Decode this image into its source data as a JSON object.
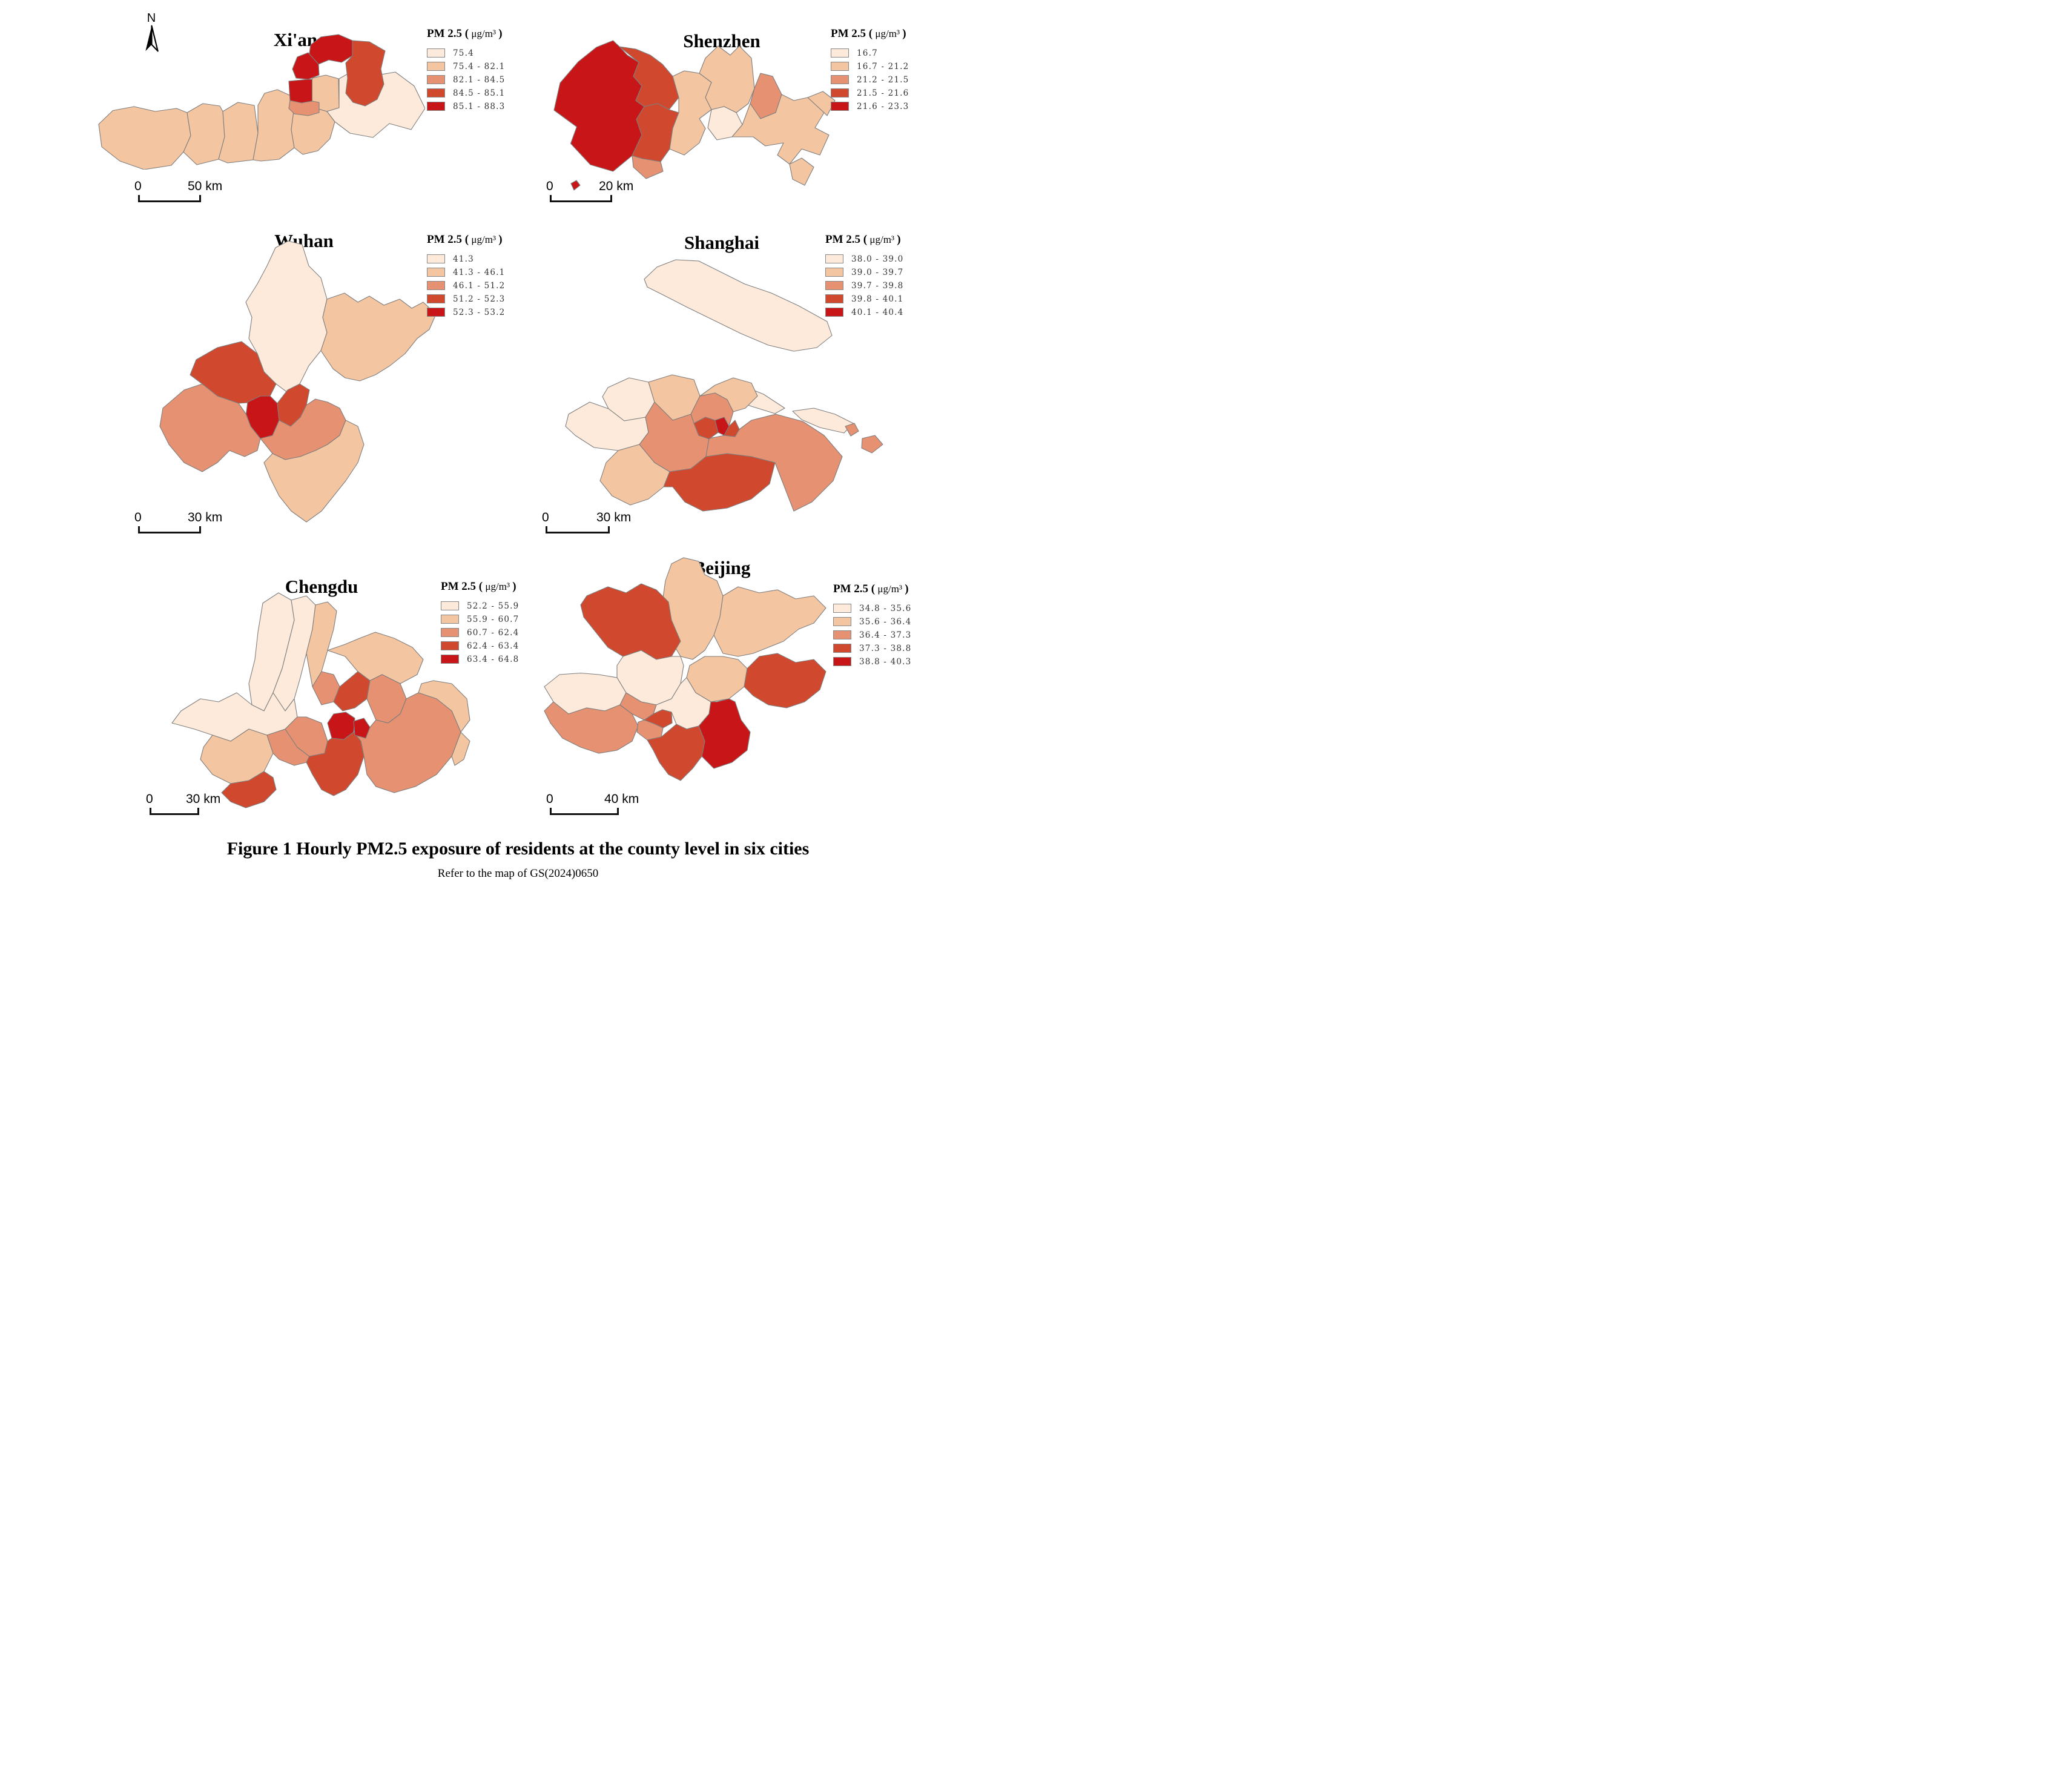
{
  "figure": {
    "north_label": "N",
    "caption": "Figure 1 Hourly PM2.5 exposure of residents at the county level in six cities",
    "subcaption": "Refer to the map of GS(2024)0650"
  },
  "legend": {
    "prefix": "PM 2.5 (",
    "unit": " μg/m³ ",
    "suffix": ")"
  },
  "palette": {
    "c1": "#fdeada",
    "c2": "#f4c5a1",
    "c3": "#e69171",
    "c4": "#d0492f",
    "c5": "#c81618",
    "border": "#7e7e7e"
  },
  "cities": [
    {
      "id": "xian",
      "title": "Xi'an",
      "legend": [
        "75.4",
        "75.4 - 82.1",
        "82.1 - 84.5",
        "84.5 - 85.1",
        "85.1 - 88.3"
      ],
      "scale": {
        "zero": "0",
        "distance": "50 km"
      },
      "regions": [
        {
          "c": 2,
          "p": "8,300 55,255 125,242 195,258 265,248 300,262 312,338 288,392 248,436 158,450 78,422 18,375"
        },
        {
          "c": 2,
          "p": "300,262 352,232 408,240 418,258 424,342 404,416 332,434 288,392 312,338"
        },
        {
          "c": 2,
          "p": "418,258 468,228 522,238 534,330 518,418 434,428 404,416 424,342"
        },
        {
          "c": 2,
          "p": "534,238 556,198 598,186 642,206 652,258 644,318 654,378 604,416 544,422 518,418 534,330"
        },
        {
          "c": 2,
          "p": "652,258 713,244 762,258 788,292 772,348 732,388 682,400 654,378 644,318"
        },
        {
          "c": 2,
          "p": "713,148 758,138 800,150 802,246 762,258 713,244"
        },
        {
          "c": 1,
          "p": "802,150 848,124 918,140 988,128 1050,174 1086,248 1040,318 968,298 914,344 838,330 788,292 762,258 802,246"
        },
        {
          "c": 5,
          "p": "700,94 708,38 742,12 800,4 846,24 846,74 810,96 768,88 734,102"
        },
        {
          "c": 4,
          "p": "846,24 902,28 954,58 940,118 950,168 928,218 888,240 848,228 824,198 830,148 824,98 846,74"
        },
        {
          "c": 5,
          "p": "648,118 664,78 700,64 734,102 736,138 700,152 660,148"
        },
        {
          "c": 5,
          "p": "636,158 700,152 713,152 713,224 678,230 640,222"
        },
        {
          "c": 3,
          "p": "640,222 678,230 713,224 736,228 736,262 700,272 654,266 636,248"
        }
      ]
    },
    {
      "id": "shenzhen",
      "title": "Shenzhen",
      "legend": [
        "16.7",
        "16.7 - 21.2",
        "21.2 - 21.5",
        "21.5 - 21.6",
        "21.6 - 23.3"
      ],
      "scale": {
        "zero": "0",
        "distance": "20 km"
      },
      "regions": [
        {
          "c": 5,
          "p": "235,40 180,62 120,110 60,180 40,270 115,325 95,380 160,450 235,472 298,420 330,352 312,300 338,258 310,238 330,190 302,158 320,112 282,88 256,60"
        },
        {
          "c": 4,
          "p": "256,60 320,112 302,158 330,190 310,238 338,258 382,248 420,268 452,228 432,158 398,118 358,88 310,68"
        },
        {
          "c": 4,
          "p": "338,258 312,300 330,352 298,420 332,430 392,440 422,398 432,330 452,278 420,268 382,248"
        },
        {
          "c": 3,
          "p": "298,420 332,430 392,440 400,472 344,496 302,458"
        },
        {
          "c": 2,
          "p": "432,158 470,140 520,148 560,178 540,228 560,268 520,298 540,330 520,378 470,418 422,398 432,330 452,278 452,228"
        },
        {
          "c": 2,
          "p": "520,148 540,98 582,58 622,88 652,58 692,98 702,198 682,248 642,278 602,258 560,268 540,228 560,178"
        },
        {
          "c": 3,
          "p": "702,198 722,148 762,158 792,218 772,278 722,298 688,248"
        },
        {
          "c": 1,
          "p": "560,268 602,258 642,278 662,318 628,358 578,368 548,328"
        },
        {
          "c": 2,
          "p": "662,318 688,248 722,298 772,278 792,218 832,238 878,228 932,278 902,328 948,352 918,418 858,398 818,448 778,418 798,378 738,388 698,358 628,358"
        },
        {
          "c": 2,
          "p": "818,448 858,428 898,458 868,518 828,498"
        },
        {
          "c": 2,
          "p": "878,228 928,208 968,238 942,288 932,278"
        },
        {
          "c": 5,
          "p": "96,512 114,502 126,518 106,534"
        }
      ]
    },
    {
      "id": "wuhan",
      "title": "Wuhan",
      "legend": [
        "41.3",
        "41.3 - 46.1",
        "46.1 - 51.2",
        "51.2 - 52.3",
        "52.3 - 53.2"
      ],
      "scale": {
        "zero": "0",
        "distance": "30 km"
      },
      "regions": [
        {
          "c": 1,
          "p": "390,28 432,6 478,18 500,88 540,128 560,198 546,258 560,308 540,368 500,418 470,478 432,508 392,478 352,438 330,378 302,328 312,258 292,208 330,148 362,88"
        },
        {
          "c": 2,
          "p": "560,198 618,178 662,208 700,188 748,218 800,198 840,228 878,208 920,248 898,298 858,328 818,378 768,418 720,448 668,468 620,458 580,428 540,368 560,308 546,258"
        },
        {
          "c": 4,
          "p": "128,398 198,358 278,338 330,378 352,438 392,478 372,518 330,538 268,542 198,518 148,478 108,448"
        },
        {
          "c": 3,
          "p": "18,558 88,498 148,478 198,518 268,542 293,578 308,618 340,658 330,698 288,718 238,698 198,738 148,768 88,738 38,678 8,618"
        },
        {
          "c": 3,
          "p": "340,658 380,648 402,598 440,618 472,588 492,548 522,528 562,538 602,558 622,598 602,648 562,678 522,698 472,718 422,728 380,708"
        },
        {
          "c": 2,
          "p": "380,708 422,728 472,718 522,698 562,678 602,648 622,598 662,618 682,678 662,738 622,798 582,848 542,898 492,934 442,898 402,848 372,788 352,738"
        },
        {
          "c": 5,
          "p": "298,538 340,518 372,518 396,542 402,598 380,648 340,658 308,618 293,578"
        },
        {
          "c": 4,
          "p": "396,542 430,498 470,478 502,498 492,548 472,588 440,618 402,598"
        }
      ]
    },
    {
      "id": "shanghai",
      "title": "Shanghai",
      "legend": [
        "38.0 - 39.0",
        "39.0 - 39.7",
        "39.7 - 39.8",
        "39.8 - 40.1",
        "40.1 - 40.4"
      ],
      "scale": {
        "zero": "0",
        "distance": "30 km"
      },
      "regions": [
        {
          "c": 1,
          "p": "268,112 310,72 372,48 448,52 520,88 600,128 688,158 778,200 872,252 888,298 838,338 762,350 678,330 588,292 498,248 408,204 330,164 278,138"
        },
        {
          "c": 1,
          "p": "520,478 588,462 662,492 732,538 700,556 622,532 552,506"
        },
        {
          "c": 1,
          "p": "758,548 828,538 898,558 958,588 928,620 848,602 788,576"
        },
        {
          "c": 1,
          "p": "148,470 218,438 282,452 302,518 272,568 202,580 150,540 130,500"
        },
        {
          "c": 2,
          "p": "282,452 360,428 432,444 452,498 422,558 362,578 302,518"
        },
        {
          "c": 2,
          "p": "452,498 502,462 562,438 622,455 642,498 602,538 562,550 542,510 502,488"
        },
        {
          "c": 1,
          "p": "18,558 88,518 150,540 202,580 272,568 282,618 252,658 182,678 102,668 40,628 8,598"
        },
        {
          "c": 3,
          "p": "422,558 452,498 502,488 542,510 562,550 548,598 502,578 470,568 432,588"
        },
        {
          "c": 3,
          "p": "252,658 282,618 272,568 302,518 362,578 422,558 432,588 448,628 482,638 472,698 422,738 352,748 302,718"
        },
        {
          "c": 2,
          "p": "182,678 252,658 302,718 352,748 332,798 282,838 222,858 162,828 122,778 142,718"
        },
        {
          "c": 4,
          "p": "352,748 422,738 472,698 542,688 622,698 700,718 682,788 622,838 542,868 462,878 402,848 362,798 332,798"
        },
        {
          "c": 3,
          "p": "482,638 532,628 568,632 582,608 622,578 702,558 792,582 862,628 922,698 892,778 822,848 762,878 700,718 622,698 542,688 472,698"
        },
        {
          "c": 4,
          "p": "432,588 470,568 502,578 512,618 482,640 448,628"
        },
        {
          "c": 5,
          "p": "502,578 532,568 548,598 532,628 512,618"
        },
        {
          "c": 4,
          "p": "548,598 568,578 582,608 568,632 532,628"
        },
        {
          "c": 3,
          "p": "932,598 962,588 976,614 950,630"
        },
        {
          "c": 3,
          "p": "988,638 1030,628 1056,658 1020,686 986,670"
        }
      ]
    },
    {
      "id": "chengdu",
      "title": "Chengdu",
      "legend": [
        "52.2 - 55.9",
        "55.9 - 60.7",
        "60.7 - 62.4",
        "62.4 - 63.4",
        "63.4 - 64.8"
      ],
      "scale": {
        "zero": "0",
        "distance": "30 km"
      },
      "regions": [
        {
          "c": 1,
          "p": "328,62 380,28 422,52 432,118 412,198 392,278 362,358 332,418 292,398 282,328 302,248 312,158"
        },
        {
          "c": 1,
          "p": "422,52 472,38 502,68 492,148 472,228 452,308 432,378 402,418 362,358 392,278 412,198 432,118"
        },
        {
          "c": 1,
          "p": "58,418 122,378 182,388 242,358 292,398 332,418 362,358 402,418 432,378 442,438 402,478 342,498 282,478 222,518 162,498 102,478 28,458"
        },
        {
          "c": 2,
          "p": "162,498 222,518 282,478 342,498 362,558 332,618 282,648 222,658 162,628 122,578 132,538"
        },
        {
          "c": 2,
          "p": "502,68 542,58 572,88 562,148 542,218 522,288 492,338 472,228 492,148"
        },
        {
          "c": 2,
          "p": "542,218 600,198 648,178 700,158 762,178 822,208 858,248 838,298 782,328 722,298 682,318 642,288 600,238"
        },
        {
          "c": 4,
          "p": "222,658 282,648 332,618 362,638 372,678 332,718 272,738 222,718 192,688"
        },
        {
          "c": 2,
          "p": "842,358 902,378 952,418 982,488 1012,448 1002,378 952,328 892,318 852,328"
        },
        {
          "c": 2,
          "p": "952,568 982,488 1012,518 992,578 962,598"
        },
        {
          "c": 3,
          "p": "492,338 522,288 562,298 582,338 562,388 522,398"
        },
        {
          "c": 4,
          "p": "562,388 582,338 642,288 682,318 672,378 632,408 592,418"
        },
        {
          "c": 3,
          "p": "682,318 722,298 782,328 802,378 782,428 742,458 702,448 672,378"
        },
        {
          "c": 3,
          "p": "662,568 652,518 632,498 668,508 682,472 702,448 742,458 782,428 802,378 842,358 902,378 952,418 982,488 952,568 902,628 832,668 762,688 702,668 672,628"
        },
        {
          "c": 3,
          "p": "342,498 402,478 422,508 442,538 482,568 472,588 432,598 382,578 362,558"
        },
        {
          "c": 3,
          "p": "402,478 442,438 472,438 522,458 542,518 532,558 482,568 442,538 422,508"
        },
        {
          "c": 4,
          "p": "482,568 532,558 542,518 556,508 596,512 628,488 652,518 662,568 642,628 602,678 562,698 522,678 492,628 472,588"
        },
        {
          "c": 5,
          "p": "542,458 562,428 602,422 632,442 628,488 596,512 556,508"
        },
        {
          "c": 5,
          "p": "628,452 662,442 682,472 668,508 632,498"
        }
      ]
    },
    {
      "id": "beijing",
      "title": "Beijing",
      "legend": [
        "34.8 - 35.6",
        "35.6 - 36.4",
        "36.4 - 37.3",
        "37.3 - 38.8",
        "38.8 - 40.3"
      ],
      "scale": {
        "zero": "0",
        "distance": "40 km"
      },
      "regions": [
        {
          "c": 2,
          "p": "428,22 468,2 518,14 538,58 578,78 598,128 588,198 568,258 538,308 498,338 458,328 428,278 418,208 398,148 408,78"
        },
        {
          "c": 2,
          "p": "598,128 648,98 718,118 778,108 838,138 898,128 938,168 898,218 848,238 798,278 748,298 698,318 648,328 598,318 568,258 588,198"
        },
        {
          "c": 4,
          "p": "148,128 218,98 278,118 328,88 378,108 418,148 428,208 458,278 428,328 378,338 328,308 268,328 218,298 178,248 138,198 128,158"
        },
        {
          "c": 1,
          "p": "268,328 328,308 378,338 428,328 458,328 468,358 458,418 428,468 378,488 328,478 278,448 248,398 248,358"
        },
        {
          "c": 1,
          "p": "8,428 58,388 128,383 188,388 248,398 278,448 258,488 208,508 148,498 88,518 38,478"
        },
        {
          "c": 3,
          "p": "38,478 88,518 148,498 208,508 258,488 298,518 318,558 298,608 248,638 188,648 128,628 68,598 28,548 8,508"
        },
        {
          "c": 2,
          "p": "488,358 538,328 598,328 648,338 678,368 668,428 618,468 558,478 508,448 478,398"
        },
        {
          "c": 1,
          "p": "428,468 458,418 478,398 508,448 558,478 552,518 518,558 478,568 444,552 428,512 398,504 368,518 378,488"
        },
        {
          "c": 4,
          "p": "678,368 718,328 778,318 838,348 898,338 938,378 918,438 868,478 808,498 748,488 698,458 668,428"
        },
        {
          "c": 3,
          "p": "278,448 328,478 378,488 368,518 338,538 298,518 258,488"
        },
        {
          "c": 4,
          "p": "368,518 398,504 428,512 430,548 400,564 370,550 338,538"
        },
        {
          "c": 3,
          "p": "318,545 338,538 370,550 400,564 394,594 348,604 314,578"
        },
        {
          "c": 5,
          "p": "552,518 518,558 538,608 528,658 568,698 628,678 678,638 688,578 658,538 638,478 618,468 578,478 558,478"
        },
        {
          "c": 4,
          "p": "394,594 444,552 478,568 518,558 538,608 528,658 498,698 458,738 418,718 388,678 368,638 348,604"
        }
      ]
    }
  ]
}
